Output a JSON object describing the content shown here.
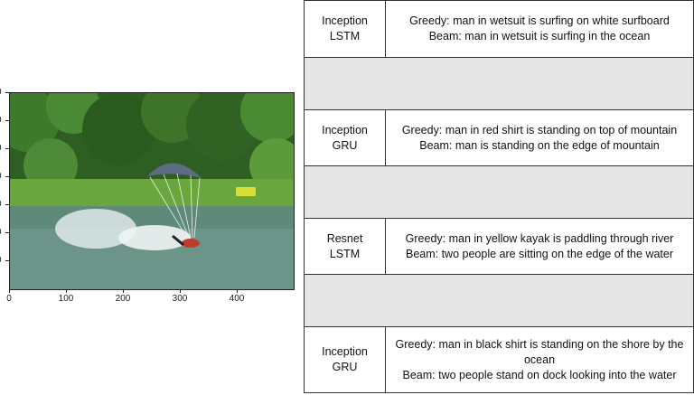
{
  "figure": {
    "x_ticks": [
      "0",
      "100",
      "200",
      "300",
      "400"
    ],
    "y_ticks": [
      "0",
      "0",
      "0",
      "0",
      "0",
      "0",
      "0"
    ]
  },
  "table": {
    "rows": [
      {
        "model_line1": "Inception",
        "model_line2": "LSTM",
        "greedy": "Greedy: man in wetsuit is surfing on white surfboard",
        "beam": "Beam: man in wetsuit is surfing in the ocean"
      },
      {
        "model_line1": "Inception",
        "model_line2": "GRU",
        "greedy": "Greedy: man in red shirt is standing on top of mountain",
        "beam": "Beam: man is standing on the edge of mountain"
      },
      {
        "model_line1": "Resnet",
        "model_line2": "LSTM",
        "greedy": "Greedy: man in yellow kayak is paddling through river",
        "beam": "Beam: two people are sitting on the edge of the water"
      },
      {
        "model_line1": "Inception",
        "model_line2": "GRU",
        "greedy": "Greedy: man in black shirt is standing on the shore by the ocean",
        "beam": "Beam: two people stand on dock looking into the water"
      }
    ]
  }
}
